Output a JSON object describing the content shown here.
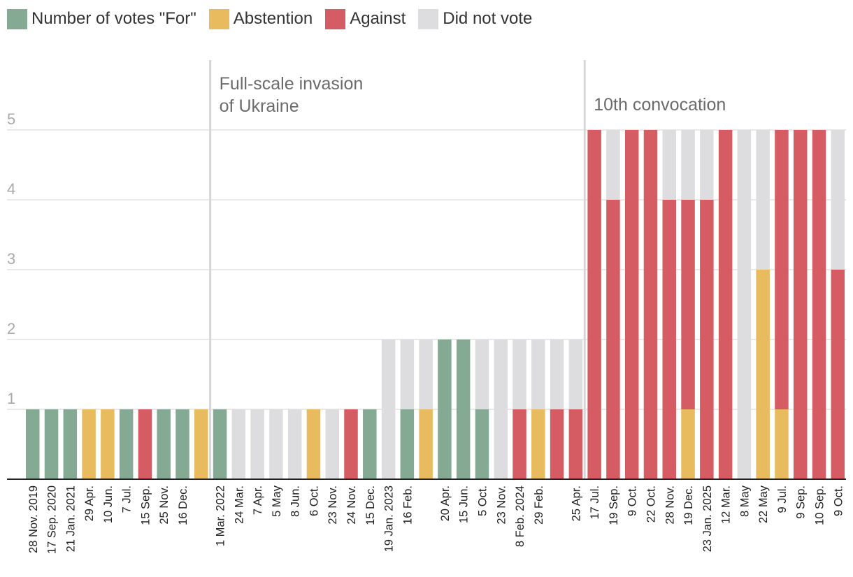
{
  "legend": {
    "for_label": "Number of votes \"For\"",
    "abstention_label": "Abstention",
    "against_label": "Against",
    "did_not_vote_label": "Did not vote"
  },
  "colors": {
    "for": "#85aa94",
    "abstention": "#e7bb5e",
    "against": "#d55c63",
    "did_not_vote": "#dddde0",
    "grid": "#e2e2e2",
    "marker": "#d6d6d6"
  },
  "chart_data": {
    "type": "bar",
    "stacked": true,
    "ylim": [
      0,
      5
    ],
    "yticks": [
      1,
      2,
      3,
      4,
      5
    ],
    "series_order": [
      "for",
      "abstention",
      "against",
      "did_not_vote"
    ],
    "annotations": [
      {
        "text_lines": [
          "Full-scale invasion",
          "of Ukraine"
        ],
        "before_index": 10
      },
      {
        "text_lines": [
          "10th convocation"
        ],
        "before_index": 30
      }
    ],
    "categories": [
      "28 Nov. 2019",
      "17 Sep. 2020",
      "21 Jan. 2021",
      "29 Apr.",
      "10 Jun.",
      "7 Jul.",
      "15 Sep.",
      "25 Nov.",
      "16 Dec.",
      "",
      "1 Mar. 2022",
      "24 Mar.",
      "7 Apr.",
      "5 May",
      "8 Jun.",
      "6 Oct.",
      "23 Nov.",
      "24 Nov.",
      "15 Dec.",
      "19 Jan. 2023",
      "16 Feb.",
      "",
      "20 Apr.",
      "15 Jun.",
      "5 Oct.",
      "23 Nov.",
      "8 Feb. 2024",
      "29 Feb.",
      "",
      "25 Apr.",
      "17 Jul.",
      "19 Sep.",
      "9 Oct.",
      "22 Oct.",
      "28 Nov.",
      "19 Dec.",
      "23 Jan. 2025",
      "12 Mar.",
      "8 May",
      "22 May",
      "9 Jul.",
      "9 Sep.",
      "10 Sep.",
      "9 Oct."
    ],
    "series": [
      {
        "name": "for",
        "values": [
          1,
          1,
          1,
          0,
          0,
          1,
          0,
          1,
          1,
          0,
          1,
          0,
          0,
          0,
          0,
          0,
          0,
          0,
          1,
          0,
          1,
          0,
          2,
          2,
          1,
          0,
          0,
          0,
          0,
          0,
          0,
          0,
          0,
          0,
          0,
          0,
          0,
          0,
          0,
          0,
          0,
          0,
          0,
          0
        ]
      },
      {
        "name": "abstention",
        "values": [
          0,
          0,
          0,
          1,
          1,
          0,
          0,
          0,
          0,
          1,
          0,
          0,
          0,
          0,
          0,
          1,
          0,
          0,
          0,
          0,
          0,
          1,
          0,
          0,
          0,
          0,
          0,
          1,
          0,
          0,
          0,
          0,
          0,
          0,
          0,
          1,
          0,
          0,
          0,
          3,
          1,
          0,
          0,
          0
        ]
      },
      {
        "name": "against",
        "values": [
          0,
          0,
          0,
          0,
          0,
          0,
          1,
          0,
          0,
          0,
          0,
          0,
          0,
          0,
          0,
          0,
          0,
          1,
          0,
          0,
          0,
          0,
          0,
          0,
          0,
          0,
          1,
          0,
          1,
          1,
          5,
          4,
          5,
          5,
          4,
          3,
          4,
          5,
          0,
          0,
          4,
          5,
          5,
          3
        ]
      },
      {
        "name": "did_not_vote",
        "values": [
          0,
          0,
          0,
          0,
          0,
          0,
          0,
          0,
          0,
          0,
          0,
          1,
          1,
          1,
          1,
          0,
          1,
          0,
          0,
          2,
          1,
          1,
          0,
          0,
          1,
          2,
          1,
          1,
          1,
          1,
          0,
          1,
          0,
          0,
          1,
          1,
          1,
          0,
          5,
          2,
          0,
          0,
          0,
          2
        ]
      }
    ]
  }
}
